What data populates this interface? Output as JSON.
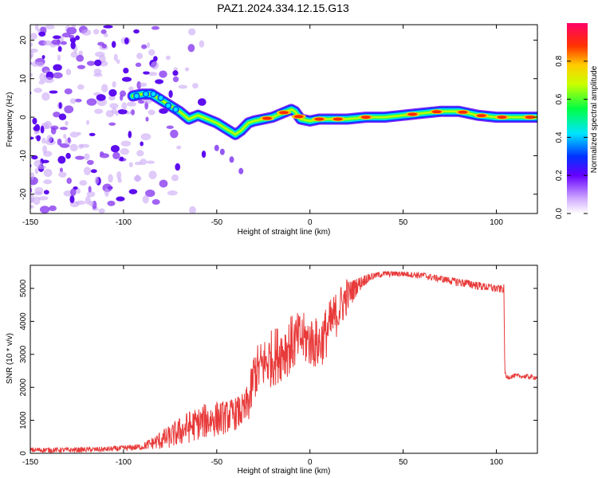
{
  "title": "PAZ1.2024.334.12.15.G13",
  "colors": {
    "snr_line": "#e83a3a",
    "axes": "#000000"
  },
  "chart_data": [
    {
      "type": "heatmap",
      "xlabel": "Height of straight line (km)",
      "ylabel": "Frequency (Hz)",
      "xlim": [
        -150,
        122
      ],
      "ylim": [
        -25,
        24
      ],
      "xticks": [
        "-150",
        "-100",
        "-50",
        "0",
        "50",
        "100"
      ],
      "yticks": [
        "20",
        "10",
        "0",
        "-10",
        "-20"
      ],
      "colorbar": {
        "label": "Normalized spectral amplitude",
        "range": [
          0,
          1
        ],
        "ticks": [
          "0.0",
          "0.2",
          "0.4",
          "0.6",
          "0.8"
        ],
        "colormap": "rainbow"
      },
      "ridge": {
        "x": [
          -95,
          -90,
          -85,
          -80,
          -75,
          -70,
          -65,
          -60,
          -55,
          -50,
          -45,
          -40,
          -37,
          -33,
          -30,
          -25,
          -20,
          -15,
          -10,
          -8,
          -5,
          0,
          5,
          10,
          20,
          30,
          40,
          50,
          60,
          70,
          80,
          90,
          100,
          110,
          122
        ],
        "y": [
          5.5,
          6,
          6,
          4.5,
          3,
          1.5,
          -0.5,
          0.5,
          -0.5,
          -1.5,
          -3,
          -4.5,
          -3.5,
          -1.5,
          -1,
          -0.5,
          0,
          1,
          2,
          1.5,
          -0.5,
          -1,
          -0.5,
          -0.5,
          -0.5,
          0,
          0,
          0.5,
          1,
          1.5,
          1.5,
          0.5,
          0,
          0,
          0
        ]
      },
      "noise_region": [
        -150,
        -75
      ],
      "outliers": [
        {
          "x": -50,
          "y": -8
        },
        {
          "x": -47,
          "y": -9
        },
        {
          "x": -42,
          "y": -11
        },
        {
          "x": -37,
          "y": -14
        }
      ]
    },
    {
      "type": "line",
      "xlabel": "Height of straight line (km)",
      "ylabel": "SNR (10 * v/v)",
      "xlim": [
        -150,
        122
      ],
      "ylim": [
        0,
        5700
      ],
      "xticks": [
        "-150",
        "-100",
        "-50",
        "0",
        "50",
        "100"
      ],
      "yticks": [
        "0",
        "1000",
        "2000",
        "3000",
        "4000",
        "5000"
      ],
      "series": [
        {
          "x": [
            -150,
            -130,
            -110,
            -100,
            -90,
            -85,
            -80,
            -75,
            -70,
            -65,
            -60,
            -55,
            -50,
            -45,
            -40,
            -35,
            -32,
            -30,
            -25,
            -20,
            -15,
            -10,
            -5,
            0,
            5,
            10,
            15,
            20,
            25,
            30,
            35,
            40,
            50,
            60,
            70,
            80,
            90,
            100,
            104,
            104.5,
            105,
            110,
            122
          ],
          "y": [
            100,
            100,
            120,
            150,
            200,
            300,
            400,
            500,
            650,
            800,
            900,
            1000,
            1050,
            1100,
            1200,
            1300,
            1700,
            2400,
            2700,
            2900,
            3100,
            3300,
            3500,
            3400,
            3300,
            3800,
            4300,
            4800,
            5100,
            5300,
            5400,
            5450,
            5450,
            5400,
            5300,
            5200,
            5100,
            5000,
            5000,
            2600,
            2300,
            2350,
            2300
          ],
          "noise": [
            80,
            80,
            80,
            90,
            100,
            180,
            300,
            350,
            450,
            500,
            500,
            550,
            550,
            500,
            500,
            550,
            700,
            800,
            800,
            900,
            900,
            900,
            800,
            800,
            800,
            800,
            700,
            600,
            300,
            180,
            120,
            100,
            100,
            120,
            120,
            150,
            150,
            150,
            150,
            100,
            80,
            70,
            70
          ]
        }
      ]
    }
  ]
}
